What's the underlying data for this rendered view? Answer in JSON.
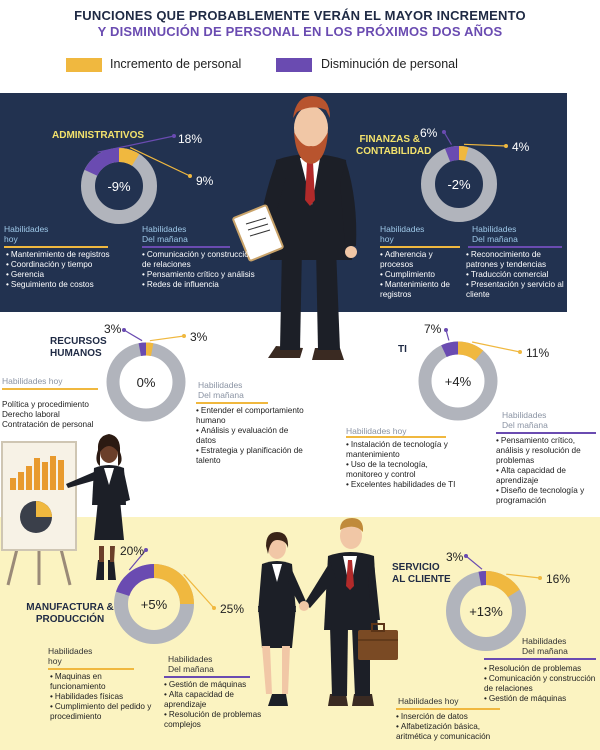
{
  "header": {
    "title_line1": "FUNCIONES QUE PROBABLEMENTE VERÁN EL MAYOR INCREMENTO",
    "title_line2": "Y DISMINUCIÓN DE PERSONAL EN LOS PRÓXIMOS DOS AÑOS"
  },
  "legend": {
    "increase": "Incremento de personal",
    "decrease": "Disminución de personal"
  },
  "colors": {
    "increase": "#f0b83f",
    "decrease": "#6a4bb1",
    "neutral": "#b1b4bc",
    "navy": "#223250",
    "yellow_band": "#fbf3c1"
  },
  "labels": {
    "skills_today_1": "Habilidades",
    "skills_today_2": "hoy",
    "skills_today_one": "Habilidades hoy",
    "skills_tomorrow_1": "Habilidades",
    "skills_tomorrow_2": "Del mañana"
  },
  "categories": {
    "administrativos": {
      "name": "ADMINISTRATIVOS",
      "increase_label": "9%",
      "decrease_label": "18%",
      "net_label": "-9%",
      "increase": 9,
      "decrease": 18,
      "skills_today": [
        "Mantenimiento de registros",
        "Coordinación y tiempo",
        "Gerencia",
        "Seguimiento de costos"
      ],
      "skills_tomorrow": [
        "Comunicación y construcción de relaciones",
        "Pensamiento crítico y análisis",
        "Redes de influencia"
      ]
    },
    "finanzas": {
      "name_line1": "FINANZAS &",
      "name_line2": "CONTABILIDAD",
      "increase_label": "4%",
      "decrease_label": "6%",
      "net_label": "-2%",
      "increase": 4,
      "decrease": 6,
      "skills_today": [
        "Adherencia y procesos",
        "Cumplimiento",
        "Mantenimiento de registros"
      ],
      "skills_tomorrow": [
        "Reconocimiento de patrones y tendencias",
        "Traducción comercial",
        "Presentación y servicio al cliente"
      ]
    },
    "recursos_humanos": {
      "name_line1": "RECURSOS",
      "name_line2": "HUMANOS",
      "increase_label": "3%",
      "decrease_label": "3%",
      "net_label": "0%",
      "increase": 3,
      "decrease": 3,
      "skills_today": [
        "Política y procedimiento",
        "Derecho laboral",
        "Contratación de personal"
      ],
      "skills_tomorrow": [
        "Entender el comportamiento humano",
        "Análisis y evaluación de datos",
        "Estrategia y planificación de talento"
      ]
    },
    "ti": {
      "name": "TI",
      "increase_label": "11%",
      "decrease_label": "7%",
      "net_label": "+4%",
      "increase": 11,
      "decrease": 7,
      "skills_today": [
        "Instalación de tecnología y mantenimiento",
        "Uso de la tecnología, monitoreo y control",
        "Excelentes habilidades de TI"
      ],
      "skills_tomorrow": [
        "Pensamiento crítico, análisis y resolución de problemas",
        "Alta capacidad de aprendizaje",
        "Diseño de tecnología y programación"
      ]
    },
    "manufactura": {
      "name_line1": "MANUFACTURA &",
      "name_line2": "PRODUCCIÓN",
      "increase_label": "25%",
      "decrease_label": "20%",
      "net_label": "+5%",
      "increase": 25,
      "decrease": 20,
      "skills_today": [
        "Maquinas en funcionamiento",
        "Habilidades físicas",
        "Cumplimiento del pedido y procedimiento"
      ],
      "skills_tomorrow": [
        "Gestión de máquinas",
        "Alta capacidad de aprendizaje",
        "Resolución de problemas complejos"
      ]
    },
    "servicio": {
      "name_line1": "SERVICIO",
      "name_line2": "AL CLIENTE",
      "increase_label": "16%",
      "decrease_label": "3%",
      "net_label": "+13%",
      "increase": 16,
      "decrease": 3,
      "skills_today": [
        "Inserción de datos",
        "Alfabetización básica, aritmética y comunicación"
      ],
      "skills_tomorrow": [
        "Resolución de problemas",
        "Comunicación y construcción de relaciones",
        "Gestión de máquinas"
      ]
    }
  }
}
